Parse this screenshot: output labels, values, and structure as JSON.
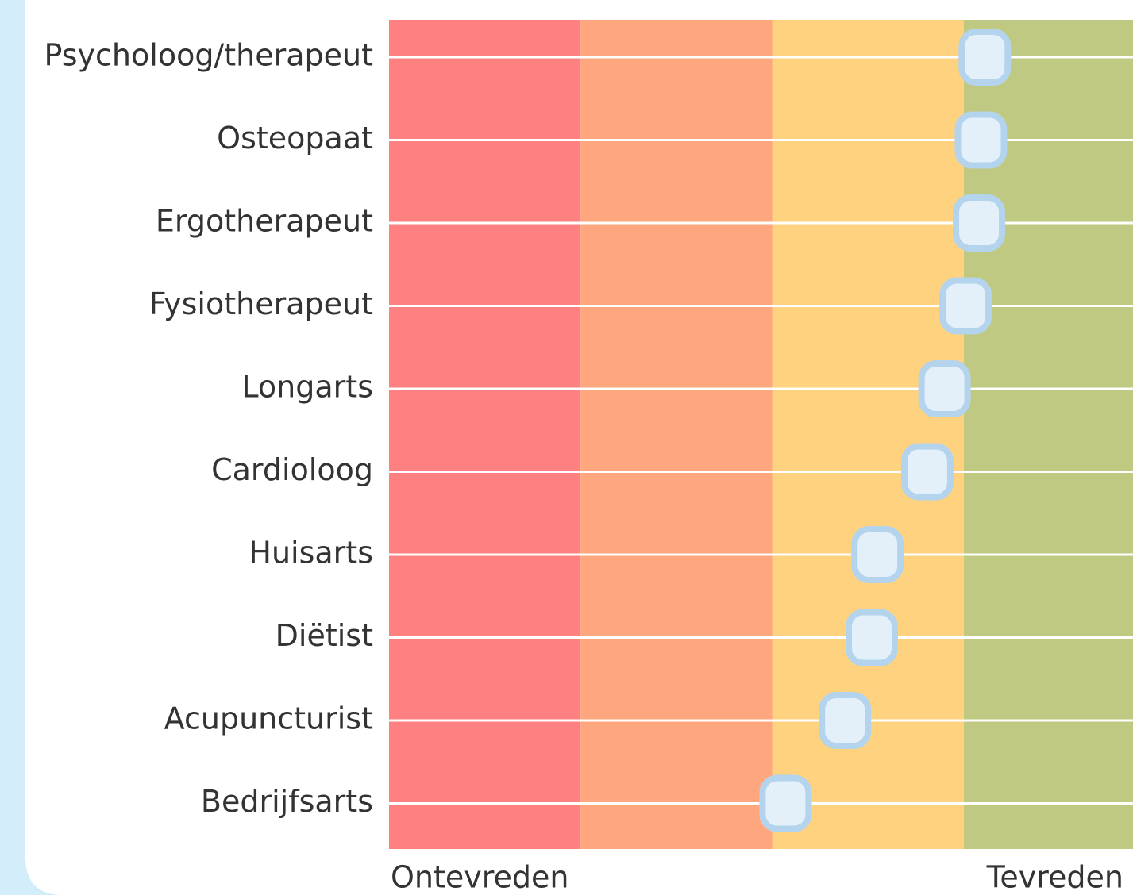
{
  "chart_data": {
    "type": "dot",
    "categories": [
      "Psycholoog/therapeut",
      "Osteopaat",
      "Ergotherapeut",
      "Fysiotherapeut",
      "Longarts",
      "Cardioloog",
      "Huisarts",
      "Diëtist",
      "Acupuncturist",
      "Bedrijfsarts"
    ],
    "values": [
      3.11,
      3.09,
      3.08,
      3.01,
      2.9,
      2.81,
      2.55,
      2.52,
      2.38,
      2.07
    ],
    "xlim": [
      0,
      4
    ],
    "x_label_left": "Ontevreden",
    "x_label_right": "Tevreden",
    "band_colors": [
      "#ff8080",
      "#fea77e",
      "#fed27e",
      "#bfc982"
    ],
    "marker_color": "#e3f0fa",
    "marker_edge_color": "#b3d4ec",
    "grid": true
  }
}
